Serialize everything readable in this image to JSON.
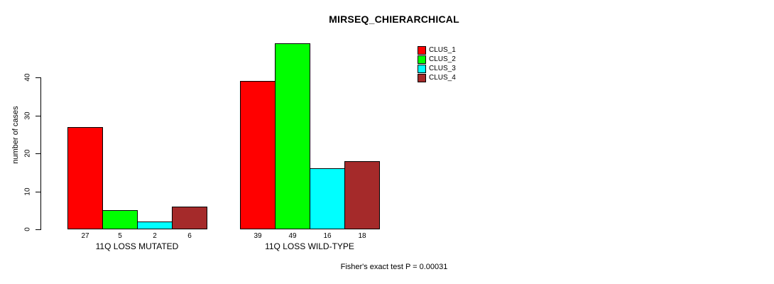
{
  "title": "MIRSEQ_CHIERARCHICAL",
  "footer": "Fisher's exact test P = 0.00031",
  "ylabel": "number of cases",
  "legend": [
    {
      "label": "CLUS_1",
      "color": "#ff0000"
    },
    {
      "label": "CLUS_2",
      "color": "#00ff00"
    },
    {
      "label": "CLUS_3",
      "color": "#00ffff"
    },
    {
      "label": "CLUS_4",
      "color": "#a52a2a"
    }
  ],
  "chart_data": {
    "type": "bar",
    "title": "MIRSEQ_CHIERARCHICAL",
    "categories": [
      "11Q LOSS MUTATED",
      "11Q LOSS WILD-TYPE"
    ],
    "series": [
      {
        "name": "CLUS_1",
        "color": "#ff0000",
        "values": [
          27,
          39
        ]
      },
      {
        "name": "CLUS_2",
        "color": "#00ff00",
        "values": [
          5,
          49
        ]
      },
      {
        "name": "CLUS_3",
        "color": "#00ffff",
        "values": [
          2,
          16
        ]
      },
      {
        "name": "CLUS_4",
        "color": "#a52a2a",
        "values": [
          6,
          18
        ]
      }
    ],
    "xlabel": "",
    "ylabel": "number of cases",
    "yticks": [
      0,
      10,
      20,
      30,
      40
    ],
    "ylim": [
      0,
      49
    ],
    "bar_labels": true,
    "grid": false,
    "legend_position": "top-right",
    "annotation": "Fisher's exact test P = 0.00031"
  }
}
